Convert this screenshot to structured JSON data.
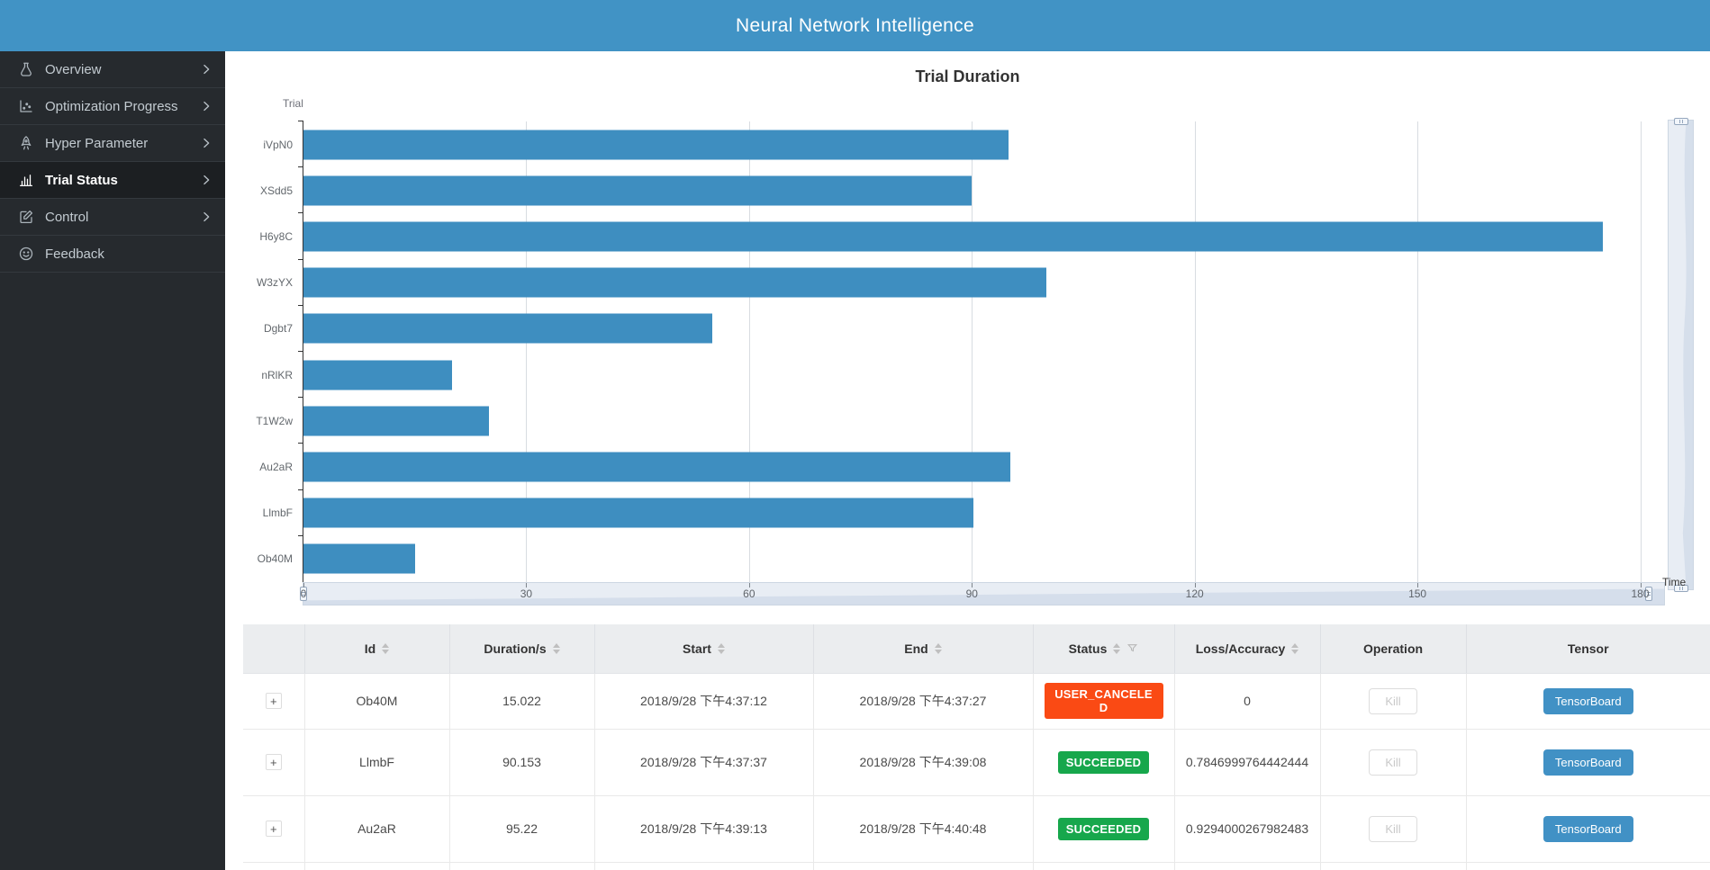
{
  "header": {
    "title": "Neural Network Intelligence"
  },
  "sidebar": {
    "items": [
      {
        "label": "Overview",
        "icon": "flask-icon",
        "chevron": true,
        "active": false
      },
      {
        "label": "Optimization Progress",
        "icon": "scatter-chart-icon",
        "chevron": true,
        "active": false
      },
      {
        "label": "Hyper Parameter",
        "icon": "rocket-icon",
        "chevron": true,
        "active": false
      },
      {
        "label": "Trial Status",
        "icon": "bar-chart-icon",
        "chevron": true,
        "active": true
      },
      {
        "label": "Control",
        "icon": "edit-icon",
        "chevron": true,
        "active": false
      },
      {
        "label": "Feedback",
        "icon": "smiley-icon",
        "chevron": false,
        "active": false
      }
    ]
  },
  "chart_data": {
    "type": "bar",
    "orientation": "horizontal",
    "title": "Trial Duration",
    "ylabel": "Trial",
    "xlabel": "Time",
    "categories": [
      "iVpN0",
      "XSdd5",
      "H6y8C",
      "W3zYX",
      "Dgbt7",
      "nRlKR",
      "T1W2w",
      "Au2aR",
      "LlmbF",
      "Ob40M"
    ],
    "values": [
      95,
      90,
      175,
      100,
      55,
      20,
      25,
      95.22,
      90.153,
      15.022
    ],
    "xticks": [
      0,
      30,
      60,
      90,
      120,
      150,
      180
    ],
    "xlim": [
      0,
      182
    ],
    "grid": true,
    "bar_color": "#3e8ec0",
    "datazoom": {
      "horizontal": true,
      "vertical": true
    }
  },
  "table": {
    "expand_label": "+",
    "columns": [
      {
        "label": "",
        "key": "expand",
        "sortable": false,
        "filterable": false
      },
      {
        "label": "Id",
        "key": "id",
        "sortable": true,
        "filterable": false
      },
      {
        "label": "Duration/s",
        "key": "duration",
        "sortable": true,
        "filterable": false
      },
      {
        "label": "Start",
        "key": "start",
        "sortable": true,
        "filterable": false
      },
      {
        "label": "End",
        "key": "end",
        "sortable": true,
        "filterable": false
      },
      {
        "label": "Status",
        "key": "status",
        "sortable": true,
        "filterable": true
      },
      {
        "label": "Loss/Accuracy",
        "key": "loss",
        "sortable": true,
        "filterable": false
      },
      {
        "label": "Operation",
        "key": "operation",
        "sortable": false,
        "filterable": false
      },
      {
        "label": "Tensor",
        "key": "tensor",
        "sortable": false,
        "filterable": false
      }
    ],
    "rows": [
      {
        "id": "Ob40M",
        "duration": "15.022",
        "start": "2018/9/28 下午4:37:12",
        "end": "2018/9/28 下午4:37:27",
        "status": "USER_CANCELED",
        "status_color": "#fa4a14",
        "loss": "0",
        "kill_label": "Kill",
        "tensor_label": "TensorBoard"
      },
      {
        "id": "LlmbF",
        "duration": "90.153",
        "start": "2018/9/28 下午4:37:37",
        "end": "2018/9/28 下午4:39:08",
        "status": "SUCCEEDED",
        "status_color": "#17a74c",
        "loss": "0.7846999764442444",
        "kill_label": "Kill",
        "tensor_label": "TensorBoard"
      },
      {
        "id": "Au2aR",
        "duration": "95.22",
        "start": "2018/9/28 下午4:39:13",
        "end": "2018/9/28 下午4:40:48",
        "status": "SUCCEEDED",
        "status_color": "#17a74c",
        "loss": "0.9294000267982483",
        "kill_label": "Kill",
        "tensor_label": "TensorBoard"
      }
    ]
  },
  "colors": {
    "accent_blue": "#4193c5",
    "bar_blue": "#3e8ec0",
    "sidebar_bg": "#262a2e",
    "status_canceled": "#fa4a14",
    "status_succeeded": "#17a74c"
  }
}
